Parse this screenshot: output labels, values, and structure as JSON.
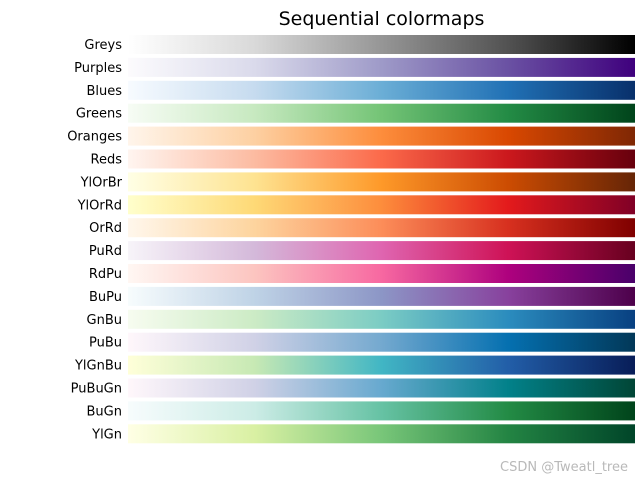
{
  "watermark": "CSDN @Tweatl_tree",
  "chart_data": {
    "type": "heatmap",
    "title": "Sequential colormaps",
    "colormaps": [
      {
        "name": "Greys",
        "stops": [
          "#ffffff",
          "#d9d9d9",
          "#969696",
          "#525252",
          "#000000"
        ]
      },
      {
        "name": "Purples",
        "stops": [
          "#fcfbfd",
          "#dadaeb",
          "#9e9ac8",
          "#6a51a3",
          "#3f007d"
        ]
      },
      {
        "name": "Blues",
        "stops": [
          "#f7fbff",
          "#c6dbef",
          "#6baed6",
          "#2171b5",
          "#08306b"
        ]
      },
      {
        "name": "Greens",
        "stops": [
          "#f7fcf5",
          "#c7e9c0",
          "#74c476",
          "#238b45",
          "#00441b"
        ]
      },
      {
        "name": "Oranges",
        "stops": [
          "#fff5eb",
          "#fdd0a2",
          "#fd8d3c",
          "#d94801",
          "#7f2704"
        ]
      },
      {
        "name": "Reds",
        "stops": [
          "#fff5f0",
          "#fcbba1",
          "#fb6a4a",
          "#cb181d",
          "#67000d"
        ]
      },
      {
        "name": "YlOrBr",
        "stops": [
          "#ffffe5",
          "#fee391",
          "#fe9929",
          "#cc4c02",
          "#662506"
        ]
      },
      {
        "name": "YlOrRd",
        "stops": [
          "#ffffcc",
          "#fed976",
          "#fd8d3c",
          "#e31a1c",
          "#800026"
        ]
      },
      {
        "name": "OrRd",
        "stops": [
          "#fff7ec",
          "#fdd49e",
          "#fc8d59",
          "#d7301f",
          "#7f0000"
        ]
      },
      {
        "name": "PuRd",
        "stops": [
          "#f7f4f9",
          "#d4b9da",
          "#df65b0",
          "#ce1256",
          "#67001f"
        ]
      },
      {
        "name": "RdPu",
        "stops": [
          "#fff7f3",
          "#fcc5c0",
          "#f768a1",
          "#ae017e",
          "#49006a"
        ]
      },
      {
        "name": "BuPu",
        "stops": [
          "#f7fcfd",
          "#bfd3e6",
          "#8c96c6",
          "#88419d",
          "#4d004b"
        ]
      },
      {
        "name": "GnBu",
        "stops": [
          "#f7fcf0",
          "#ccebc5",
          "#7bccc4",
          "#2b8cbe",
          "#084081"
        ]
      },
      {
        "name": "PuBu",
        "stops": [
          "#fff7fb",
          "#d0d1e6",
          "#74a9cf",
          "#0570b0",
          "#023858"
        ]
      },
      {
        "name": "YlGnBu",
        "stops": [
          "#ffffd9",
          "#c7e9b4",
          "#41b6c4",
          "#225ea8",
          "#081d58"
        ]
      },
      {
        "name": "PuBuGn",
        "stops": [
          "#fff7fb",
          "#d0d1e6",
          "#67a9cf",
          "#02818a",
          "#014636"
        ]
      },
      {
        "name": "BuGn",
        "stops": [
          "#f7fcfd",
          "#ccece6",
          "#66c2a4",
          "#238b45",
          "#00441b"
        ]
      },
      {
        "name": "YlGn",
        "stops": [
          "#ffffe5",
          "#d9f0a3",
          "#78c679",
          "#238443",
          "#004529"
        ]
      }
    ]
  }
}
